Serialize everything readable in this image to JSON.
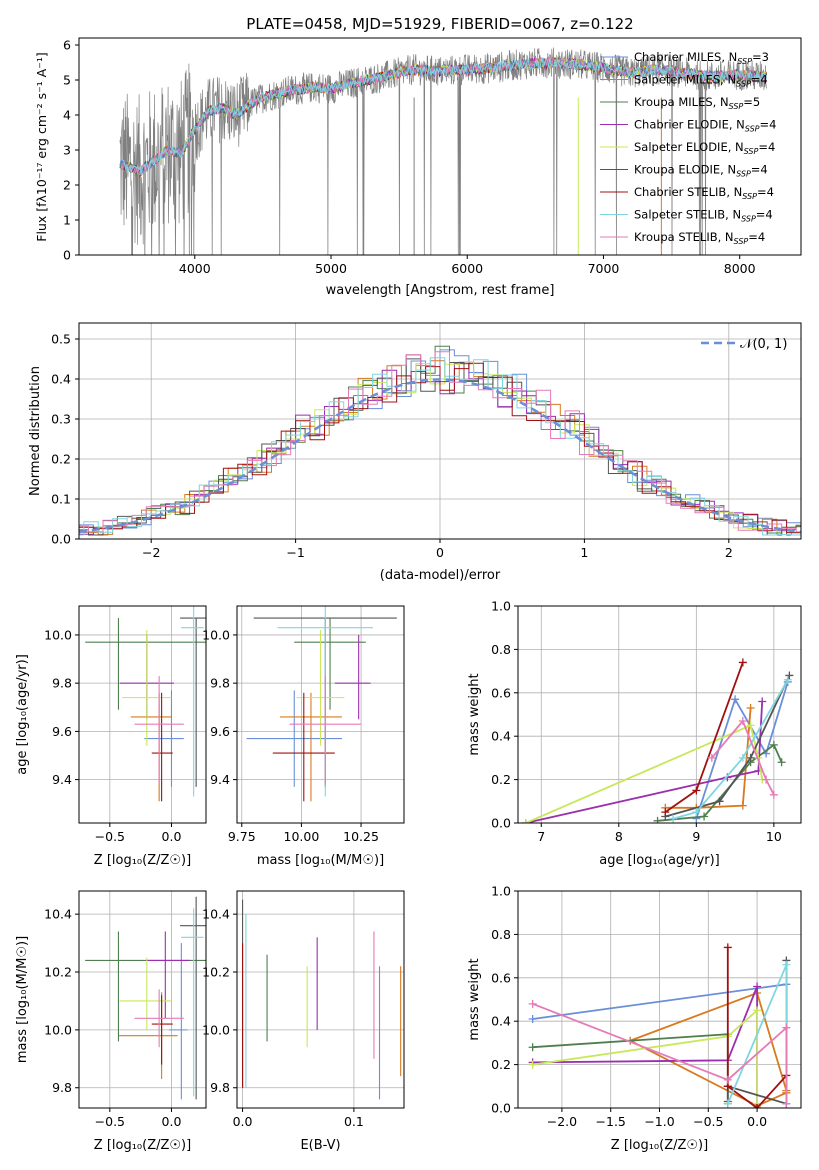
{
  "colors": [
    "#6a8fd8",
    "#d77a1f",
    "#4f7f4f",
    "#9b2fae",
    "#c8e85a",
    "#555555",
    "#a01010",
    "#7fd6e0",
    "#e67ab8"
  ],
  "chart_data": [
    {
      "id": "spectrum",
      "type": "line",
      "title": "PLATE=0458, MJD=51929, FIBERID=0067, z=0.122",
      "xlabel": "wavelength [Angstrom, rest frame]",
      "ylabel": "Flux [fλ10⁻¹⁷ erg cm⁻² s⁻¹ A⁻¹]",
      "xlim": [
        3150,
        8450
      ],
      "ylim": [
        0,
        6.2
      ],
      "xticks": [
        4000,
        5000,
        6000,
        7000,
        8000
      ],
      "yticks": [
        0,
        1,
        2,
        3,
        4,
        5,
        6
      ],
      "legend": "top-right",
      "continuum": [
        [
          3450,
          2.6
        ],
        [
          3600,
          2.4
        ],
        [
          3700,
          2.7
        ],
        [
          3800,
          3.0
        ],
        [
          3900,
          2.9
        ],
        [
          4000,
          3.6
        ],
        [
          4100,
          4.1
        ],
        [
          4200,
          4.2
        ],
        [
          4300,
          4.0
        ],
        [
          4400,
          4.3
        ],
        [
          4500,
          4.5
        ],
        [
          4700,
          4.7
        ],
        [
          4900,
          4.8
        ],
        [
          5000,
          4.75
        ],
        [
          5200,
          4.95
        ],
        [
          5400,
          5.1
        ],
        [
          5600,
          5.3
        ],
        [
          5800,
          5.25
        ],
        [
          6000,
          5.3
        ],
        [
          6200,
          5.35
        ],
        [
          6400,
          5.45
        ],
        [
          6600,
          5.5
        ],
        [
          6800,
          5.45
        ],
        [
          7000,
          5.35
        ],
        [
          7200,
          5.2
        ],
        [
          7400,
          5.3
        ],
        [
          7600,
          5.2
        ],
        [
          7800,
          5.1
        ],
        [
          8000,
          5.15
        ],
        [
          8200,
          5.1
        ]
      ],
      "series": [
        {
          "name": "Chabrier MILES, N_SSP=3",
          "label": "Chabrier MILES, N",
          "sub": "SSP",
          "suffix": "=3"
        },
        {
          "name": "Salpeter MILES, N_SSP=4",
          "label": "Salpeter MILES, N",
          "sub": "SSP",
          "suffix": "=4"
        },
        {
          "name": "Kroupa MILES, N_SSP=5",
          "label": "Kroupa MILES, N",
          "sub": "SSP",
          "suffix": "=5"
        },
        {
          "name": "Chabrier ELODIE, N_SSP=4",
          "label": "Chabrier ELODIE, N",
          "sub": "SSP",
          "suffix": "=4"
        },
        {
          "name": "Salpeter ELODIE, N_SSP=4",
          "label": "Salpeter ELODIE, N",
          "sub": "SSP",
          "suffix": "=4"
        },
        {
          "name": "Kroupa ELODIE, N_SSP=4",
          "label": "Kroupa ELODIE, N",
          "sub": "SSP",
          "suffix": "=4"
        },
        {
          "name": "Chabrier STELIB, N_SSP=4",
          "label": "Chabrier STELIB, N",
          "sub": "SSP",
          "suffix": "=4"
        },
        {
          "name": "Salpeter STELIB, N_SSP=4",
          "label": "Salpeter STELIB, N",
          "sub": "SSP",
          "suffix": "=4"
        },
        {
          "name": "Kroupa STELIB, N_SSP=4",
          "label": "Kroupa STELIB, N",
          "sub": "SSP",
          "suffix": "=4"
        }
      ]
    },
    {
      "id": "residuals",
      "type": "line",
      "xlabel": "(data-model)/error",
      "ylabel": "Normed distribution",
      "xlim": [
        -2.5,
        2.5
      ],
      "ylim": [
        0,
        0.54
      ],
      "xticks": [
        -2,
        -1,
        0,
        1,
        2
      ],
      "yticks": [
        0.0,
        0.1,
        0.2,
        0.3,
        0.4,
        0.5
      ],
      "grid": true,
      "legend": "top-right",
      "reference_label": "𝒩(0, 1)",
      "bin_width": 0.1
    },
    {
      "id": "age-vs-Z",
      "type": "scatter",
      "xlabel": "Z [log₁₀(Z/Z☉)]",
      "ylabel": "age  [log₁₀(age/yr)]",
      "xlim": [
        -0.75,
        0.28
      ],
      "ylim": [
        9.22,
        10.12
      ],
      "xticks": [
        -0.5,
        0.0
      ],
      "xticklabels": [
        "−0.5",
        "0.0"
      ],
      "yticks": [
        9.4,
        9.6,
        9.8,
        10.0
      ],
      "grid": true,
      "points": [
        {
          "x": 0.0,
          "xerr": [
            0.22,
            0.1
          ],
          "y": 9.57,
          "yerr": [
            0.2,
            0.2
          ]
        },
        {
          "x": -0.1,
          "xerr": [
            0.23,
            0.1
          ],
          "y": 9.66,
          "yerr": [
            0.35,
            0.1
          ]
        },
        {
          "x": -0.43,
          "xerr": [
            0.27,
            0.72
          ],
          "y": 9.97,
          "yerr": [
            0.28,
            0.1
          ]
        },
        {
          "x": -0.2,
          "xerr": [
            0.22,
            0.22
          ],
          "y": 9.8,
          "yerr": [
            0.15,
            0.2
          ]
        },
        {
          "x": -0.2,
          "xerr": [
            0.2,
            0.2
          ],
          "y": 9.74,
          "yerr": [
            0.2,
            0.28
          ]
        },
        {
          "x": 0.2,
          "xerr": [
            0.13,
            0.13
          ],
          "y": 10.07,
          "yerr": [
            0.7,
            0.0
          ]
        },
        {
          "x": -0.08,
          "xerr": [
            0.08,
            0.09
          ],
          "y": 9.51,
          "yerr": [
            0.2,
            0.25
          ]
        },
        {
          "x": 0.18,
          "xerr": [
            0.1,
            0.08
          ],
          "y": 10.03,
          "yerr": [
            0.7,
            0.1
          ]
        },
        {
          "x": -0.1,
          "xerr": [
            0.2,
            0.2
          ],
          "y": 9.63,
          "yerr": [
            0.25,
            0.2
          ]
        }
      ]
    },
    {
      "id": "age-vs-mass",
      "type": "scatter",
      "xlabel": "mass [log₁₀(M/M☉)]",
      "xlim": [
        9.73,
        10.43
      ],
      "ylim": [
        9.22,
        10.12
      ],
      "xticks": [
        9.75,
        10.0,
        10.25
      ],
      "xticklabels": [
        "9.75",
        "10.00",
        "10.25"
      ],
      "yticks": [
        9.4,
        9.6,
        9.8,
        10.0
      ],
      "grid": true,
      "points": [
        {
          "x": 9.97,
          "xerr": [
            0.2,
            0.2
          ],
          "y": 9.57,
          "yerr": [
            0.2,
            0.2
          ]
        },
        {
          "x": 10.04,
          "xerr": [
            0.13,
            0.13
          ],
          "y": 9.66,
          "yerr": [
            0.35,
            0.1
          ]
        },
        {
          "x": 10.12,
          "xerr": [
            0.15,
            0.15
          ],
          "y": 9.97,
          "yerr": [
            0.28,
            0.1
          ]
        },
        {
          "x": 10.24,
          "xerr": [
            0.1,
            0.05
          ],
          "y": 9.8,
          "yerr": [
            0.15,
            0.2
          ]
        },
        {
          "x": 10.08,
          "xerr": [
            0.1,
            0.1
          ],
          "y": 9.74,
          "yerr": [
            0.2,
            0.28
          ]
        },
        {
          "x": 10.1,
          "xerr": [
            0.3,
            0.3
          ],
          "y": 10.07,
          "yerr": [
            0.7,
            0.0
          ]
        },
        {
          "x": 10.01,
          "xerr": [
            0.13,
            0.13
          ],
          "y": 9.51,
          "yerr": [
            0.2,
            0.25
          ]
        },
        {
          "x": 10.1,
          "xerr": [
            0.2,
            0.2
          ],
          "y": 10.03,
          "yerr": [
            0.7,
            0.1
          ]
        },
        {
          "x": 10.1,
          "xerr": [
            0.15,
            0.15
          ],
          "y": 9.63,
          "yerr": [
            0.25,
            0.2
          ]
        }
      ]
    },
    {
      "id": "weight-vs-age",
      "type": "line",
      "xlabel": "age  [log₁₀(age/yr)]",
      "ylabel": "mass weight",
      "xlim": [
        6.7,
        10.35
      ],
      "ylim": [
        0,
        1.0
      ],
      "xticks": [
        7,
        8,
        9,
        10
      ],
      "yticks": [
        0.0,
        0.2,
        0.4,
        0.6,
        0.8,
        1.0
      ],
      "grid": true,
      "series": [
        {
          "points": [
            [
              9.0,
              0.02
            ],
            [
              9.5,
              0.57
            ],
            [
              9.9,
              0.32
            ],
            [
              10.18,
              0.65
            ]
          ]
        },
        {
          "points": [
            [
              8.6,
              0.07
            ],
            [
              9.0,
              0.07
            ],
            [
              9.6,
              0.08
            ],
            [
              9.7,
              0.53
            ]
          ]
        },
        {
          "points": [
            [
              8.5,
              0.01
            ],
            [
              9.1,
              0.03
            ],
            [
              9.7,
              0.28
            ],
            [
              10.0,
              0.36
            ],
            [
              10.1,
              0.28
            ]
          ]
        },
        {
          "points": [
            [
              6.8,
              0.0
            ],
            [
              9.4,
              0.21
            ],
            [
              9.8,
              0.24
            ],
            [
              9.85,
              0.56
            ]
          ]
        },
        {
          "points": [
            [
              6.8,
              0.0
            ],
            [
              9.7,
              0.45
            ],
            [
              9.8,
              0.3
            ],
            [
              9.85,
              0.2
            ]
          ]
        },
        {
          "points": [
            [
              8.6,
              0.03
            ],
            [
              9.3,
              0.1
            ],
            [
              9.7,
              0.3
            ],
            [
              10.2,
              0.68
            ]
          ]
        },
        {
          "points": [
            [
              8.6,
              0.05
            ],
            [
              9.0,
              0.15
            ],
            [
              9.6,
              0.74
            ]
          ]
        },
        {
          "points": [
            [
              8.7,
              0.02
            ],
            [
              9.0,
              0.05
            ],
            [
              9.6,
              0.3
            ],
            [
              10.18,
              0.66
            ]
          ]
        },
        {
          "points": [
            [
              9.2,
              0.3
            ],
            [
              9.6,
              0.47
            ],
            [
              9.9,
              0.2
            ],
            [
              10.0,
              0.13
            ]
          ]
        }
      ]
    },
    {
      "id": "mass-vs-Z",
      "type": "scatter",
      "xlabel": "Z [log₁₀(Z/Z☉)]",
      "ylabel": "mass [log₁₀(M/M☉)]",
      "xlim": [
        -0.75,
        0.28
      ],
      "ylim": [
        9.73,
        10.48
      ],
      "xticks": [
        -0.5,
        0.0
      ],
      "xticklabels": [
        "−0.5",
        "0.0"
      ],
      "yticks": [
        9.8,
        10.0,
        10.2,
        10.4
      ],
      "grid": true,
      "points": [
        {
          "x": 0.08,
          "xerr": [
            0.1,
            0.05
          ],
          "y": 10.0,
          "yerr": [
            0.24,
            0.3
          ]
        },
        {
          "x": -0.08,
          "xerr": [
            0.35,
            0.13
          ],
          "y": 9.98,
          "yerr": [
            0.15,
            0.15
          ]
        },
        {
          "x": -0.43,
          "xerr": [
            0.27,
            0.72
          ],
          "y": 10.24,
          "yerr": [
            0.28,
            0.1
          ]
        },
        {
          "x": -0.05,
          "xerr": [
            0.16,
            0.2
          ],
          "y": 10.24,
          "yerr": [
            0.2,
            0.1
          ]
        },
        {
          "x": -0.2,
          "xerr": [
            0.22,
            0.2
          ],
          "y": 10.1,
          "yerr": [
            0.1,
            0.15
          ]
        },
        {
          "x": 0.2,
          "xerr": [
            0.13,
            0.13
          ],
          "y": 10.36,
          "yerr": [
            0.6,
            0.1
          ]
        },
        {
          "x": -0.08,
          "xerr": [
            0.08,
            0.09
          ],
          "y": 10.02,
          "yerr": [
            0.14,
            0.1
          ]
        },
        {
          "x": 0.18,
          "xerr": [
            0.1,
            0.08
          ],
          "y": 10.32,
          "yerr": [
            0.55,
            0.1
          ]
        },
        {
          "x": -0.1,
          "xerr": [
            0.2,
            0.2
          ],
          "y": 10.04,
          "yerr": [
            0.1,
            0.1
          ]
        }
      ]
    },
    {
      "id": "mass-vs-ebv",
      "type": "scatter",
      "xlabel": "E(B-V)",
      "xlim": [
        -0.005,
        0.145
      ],
      "ylim": [
        9.73,
        10.48
      ],
      "xticks": [
        0.0,
        0.1
      ],
      "xticklabels": [
        "0.0",
        "0.1"
      ],
      "yticks": [
        9.8,
        10.0,
        10.2,
        10.4
      ],
      "grid": true,
      "points": [
        {
          "x": 0.123,
          "y": 10.0,
          "yerr": [
            0.24,
            0.22
          ]
        },
        {
          "x": 0.142,
          "y": 10.02,
          "yerr": [
            0.18,
            0.2
          ]
        },
        {
          "x": 0.022,
          "y": 10.16,
          "yerr": [
            0.2,
            0.1
          ]
        },
        {
          "x": 0.067,
          "y": 10.16,
          "yerr": [
            0.16,
            0.16
          ]
        },
        {
          "x": 0.058,
          "y": 10.08,
          "yerr": [
            0.14,
            0.14
          ]
        },
        {
          "x": 0.0,
          "y": 10.2,
          "yerr": [
            0.4,
            0.25
          ]
        },
        {
          "x": 0.0,
          "y": 10.1,
          "yerr": [
            0.3,
            0.2
          ]
        },
        {
          "x": 0.003,
          "y": 10.1,
          "yerr": [
            0.3,
            0.3
          ]
        },
        {
          "x": 0.118,
          "y": 10.12,
          "yerr": [
            0.22,
            0.22
          ]
        }
      ]
    },
    {
      "id": "weight-vs-Z",
      "type": "line",
      "xlabel": "Z [log₁₀(Z/Z☉)]",
      "ylabel": "mass weight",
      "xlim": [
        -2.45,
        0.45
      ],
      "ylim": [
        0,
        1.0
      ],
      "xticks": [
        -2.0,
        -1.5,
        -1.0,
        -0.5,
        0.0
      ],
      "xticklabels": [
        "−2.0",
        "−1.5",
        "−1.0",
        "−0.5",
        "0.0"
      ],
      "yticks": [
        0.0,
        0.2,
        0.4,
        0.6,
        0.8,
        1.0
      ],
      "grid": true,
      "series": [
        {
          "points": [
            [
              -2.3,
              0.41
            ],
            [
              0.3,
              0.57
            ],
            [
              0.3,
              0.02
            ]
          ]
        },
        {
          "points": [
            [
              0.3,
              0.07
            ],
            [
              0.0,
              0.01
            ],
            [
              -1.3,
              0.31
            ],
            [
              0.0,
              0.53
            ],
            [
              0.3,
              0.08
            ]
          ]
        },
        {
          "points": [
            [
              -2.3,
              0.28
            ],
            [
              -0.3,
              0.34
            ],
            [
              -0.3,
              0.02
            ]
          ]
        },
        {
          "points": [
            [
              -2.3,
              0.21
            ],
            [
              -0.3,
              0.22
            ],
            [
              0.0,
              0.56
            ],
            [
              0.0,
              0.0
            ]
          ]
        },
        {
          "points": [
            [
              -2.3,
              0.2
            ],
            [
              -0.3,
              0.33
            ],
            [
              0.0,
              0.45
            ],
            [
              0.0,
              0.02
            ]
          ]
        },
        {
          "points": [
            [
              0.3,
              0.68
            ],
            [
              0.3,
              0.02
            ],
            [
              -0.3,
              0.1
            ],
            [
              -0.3,
              0.03
            ]
          ]
        },
        {
          "points": [
            [
              -0.3,
              0.74
            ],
            [
              -0.3,
              0.1
            ],
            [
              0.0,
              0.0
            ],
            [
              0.3,
              0.15
            ]
          ]
        },
        {
          "points": [
            [
              -0.3,
              0.02
            ],
            [
              0.3,
              0.66
            ],
            [
              0.3,
              0.02
            ]
          ]
        },
        {
          "points": [
            [
              -2.3,
              0.48
            ],
            [
              -0.3,
              0.13
            ],
            [
              0.3,
              0.37
            ],
            [
              0.3,
              0.02
            ]
          ]
        }
      ]
    }
  ]
}
